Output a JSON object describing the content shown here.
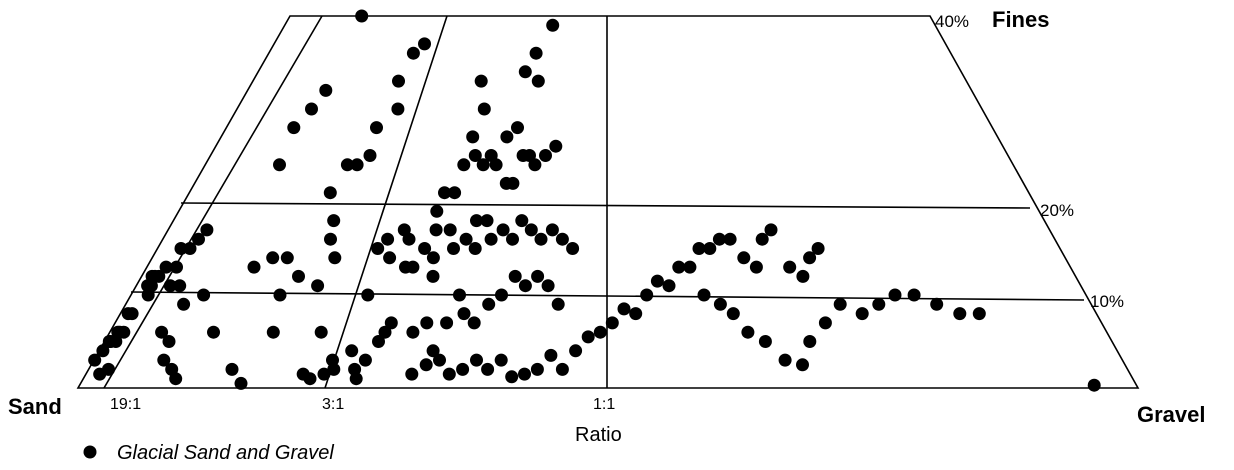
{
  "chart_data": {
    "type": "scatter",
    "title": "",
    "labels": {
      "sand": "Sand",
      "gravel": "Gravel",
      "fines": "Fines",
      "ratio": "Ratio"
    },
    "ratio_ticks": [
      "19:1",
      "3:1",
      "1:1"
    ],
    "fines_ticks": [
      "40%",
      "20%",
      "10%"
    ],
    "legend": [
      {
        "name": "Glacial Sand and Gravel",
        "color": "#000000"
      }
    ],
    "points_note": "x = gravel/(sand+gravel) fraction; y = fines percent",
    "points": [
      [
        0.002,
        3
      ],
      [
        0.009,
        4
      ],
      [
        0.012,
        5
      ],
      [
        0.016,
        5
      ],
      [
        0.02,
        6
      ],
      [
        0.025,
        6
      ],
      [
        0.028,
        5
      ],
      [
        0.035,
        6
      ],
      [
        0.033,
        1.5
      ],
      [
        0.048,
        2
      ],
      [
        0.02,
        8
      ],
      [
        0.03,
        8
      ],
      [
        0.045,
        10
      ],
      [
        0.03,
        11
      ],
      [
        0.04,
        11
      ],
      [
        0.028,
        12
      ],
      [
        0.036,
        12
      ],
      [
        0.046,
        12
      ],
      [
        0.052,
        13
      ],
      [
        0.08,
        13
      ],
      [
        0.065,
        15
      ],
      [
        0.09,
        15
      ],
      [
        0.1,
        16
      ],
      [
        0.11,
        17
      ],
      [
        0.09,
        11
      ],
      [
        0.115,
        11
      ],
      [
        0.13,
        6
      ],
      [
        0.16,
        5
      ],
      [
        0.17,
        3
      ],
      [
        0.2,
        2
      ],
      [
        0.22,
        1
      ],
      [
        0.15,
        9
      ],
      [
        0.19,
        10
      ],
      [
        0.26,
        6
      ],
      [
        0.29,
        13
      ],
      [
        0.33,
        14
      ],
      [
        0.37,
        14
      ],
      [
        0.39,
        10
      ],
      [
        0.42,
        12
      ],
      [
        0.41,
        6
      ],
      [
        0.38,
        0.5
      ],
      [
        0.345,
        2
      ],
      [
        0.22,
        28
      ],
      [
        0.23,
        24
      ],
      [
        0.25,
        30
      ],
      [
        0.27,
        32
      ],
      [
        0.28,
        40
      ],
      [
        0.46,
        18
      ],
      [
        0.42,
        21
      ],
      [
        0.44,
        24
      ],
      [
        0.47,
        24
      ],
      [
        0.5,
        25
      ],
      [
        0.49,
        28
      ],
      [
        0.51,
        33
      ],
      [
        0.53,
        36
      ],
      [
        0.54,
        30
      ],
      [
        0.56,
        37
      ],
      [
        0.47,
        16
      ],
      [
        0.5,
        14
      ],
      [
        0.48,
        11
      ],
      [
        0.53,
        6
      ],
      [
        0.52,
        1.5
      ],
      [
        0.54,
        1
      ],
      [
        0.57,
        1.5
      ],
      [
        0.58,
        3
      ],
      [
        0.59,
        2
      ],
      [
        0.62,
        4
      ],
      [
        0.64,
        2
      ],
      [
        0.65,
        1
      ],
      [
        0.66,
        3
      ],
      [
        0.68,
        5
      ],
      [
        0.69,
        6
      ],
      [
        0.7,
        7
      ],
      [
        0.62,
        10
      ],
      [
        0.61,
        15
      ],
      [
        0.63,
        16
      ],
      [
        0.65,
        14
      ],
      [
        0.67,
        17
      ],
      [
        0.69,
        16
      ],
      [
        0.7,
        13
      ],
      [
        0.72,
        13
      ],
      [
        0.74,
        15
      ],
      [
        0.76,
        17
      ],
      [
        0.77,
        14
      ],
      [
        0.75,
        19
      ],
      [
        0.76,
        21
      ],
      [
        0.79,
        21
      ],
      [
        0.8,
        24
      ],
      [
        0.81,
        27
      ],
      [
        0.83,
        25
      ],
      [
        0.86,
        24
      ],
      [
        0.88,
        25
      ],
      [
        0.9,
        24
      ],
      [
        0.92,
        27
      ],
      [
        0.94,
        22
      ],
      [
        0.96,
        22
      ],
      [
        0.95,
        28
      ],
      [
        0.98,
        25
      ],
      [
        1.0,
        25
      ],
      [
        1.02,
        24
      ],
      [
        1.05,
        25
      ],
      [
        1.08,
        26
      ],
      [
        0.95,
        34
      ],
      [
        0.98,
        36
      ],
      [
        1.0,
        33
      ],
      [
        1.03,
        39
      ],
      [
        0.8,
        33
      ],
      [
        0.83,
        30
      ],
      [
        0.78,
        12
      ],
      [
        0.82,
        15
      ],
      [
        0.8,
        17
      ],
      [
        0.85,
        16
      ],
      [
        0.87,
        18
      ],
      [
        0.88,
        15
      ],
      [
        0.9,
        18
      ],
      [
        0.92,
        16
      ],
      [
        0.95,
        17
      ],
      [
        0.98,
        16
      ],
      [
        1.0,
        18
      ],
      [
        1.03,
        17
      ],
      [
        1.06,
        16
      ],
      [
        1.09,
        17
      ],
      [
        1.12,
        16
      ],
      [
        1.15,
        15
      ],
      [
        0.76,
        6
      ],
      [
        0.79,
        7
      ],
      [
        0.82,
        4
      ],
      [
        0.84,
        7
      ],
      [
        0.86,
        10
      ],
      [
        0.88,
        8
      ],
      [
        0.91,
        7
      ],
      [
        0.94,
        9
      ],
      [
        0.97,
        10
      ],
      [
        1.0,
        12
      ],
      [
        1.03,
        11
      ],
      [
        1.06,
        12
      ],
      [
        1.09,
        11
      ],
      [
        1.12,
        9
      ],
      [
        0.78,
        1.5
      ],
      [
        0.81,
        2.5
      ],
      [
        0.84,
        3
      ],
      [
        0.87,
        1.5
      ],
      [
        0.9,
        2
      ],
      [
        0.93,
        3
      ],
      [
        0.96,
        2
      ],
      [
        0.99,
        3
      ],
      [
        1.02,
        1.2
      ],
      [
        1.05,
        1.5
      ],
      [
        1.08,
        2
      ],
      [
        1.11,
        3.5
      ],
      [
        1.14,
        2
      ],
      [
        1.17,
        4
      ],
      [
        1.2,
        5.5
      ],
      [
        1.23,
        6
      ],
      [
        1.26,
        7
      ],
      [
        1.29,
        8.5
      ],
      [
        1.32,
        8
      ],
      [
        1.35,
        10
      ],
      [
        1.38,
        11.5
      ],
      [
        1.41,
        11
      ],
      [
        1.44,
        13
      ],
      [
        1.47,
        13
      ],
      [
        1.5,
        15
      ],
      [
        1.53,
        15
      ],
      [
        1.56,
        16
      ],
      [
        1.59,
        16
      ],
      [
        1.62,
        14
      ],
      [
        1.65,
        13
      ],
      [
        1.68,
        16
      ],
      [
        1.71,
        17
      ],
      [
        1.74,
        13
      ],
      [
        1.77,
        12
      ],
      [
        1.8,
        14
      ],
      [
        1.83,
        15
      ],
      [
        1.5,
        10
      ],
      [
        1.54,
        9
      ],
      [
        1.57,
        8
      ],
      [
        1.6,
        6
      ],
      [
        1.64,
        5
      ],
      [
        1.68,
        3
      ],
      [
        1.72,
        2.5
      ],
      [
        1.75,
        5
      ],
      [
        1.8,
        7
      ],
      [
        1.85,
        9
      ],
      [
        1.9,
        8
      ],
      [
        1.95,
        9
      ],
      [
        2.0,
        10
      ],
      [
        2.05,
        10
      ],
      [
        2.1,
        9
      ],
      [
        2.15,
        8
      ],
      [
        2.2,
        8
      ],
      [
        2.4,
        0.3
      ]
    ]
  }
}
